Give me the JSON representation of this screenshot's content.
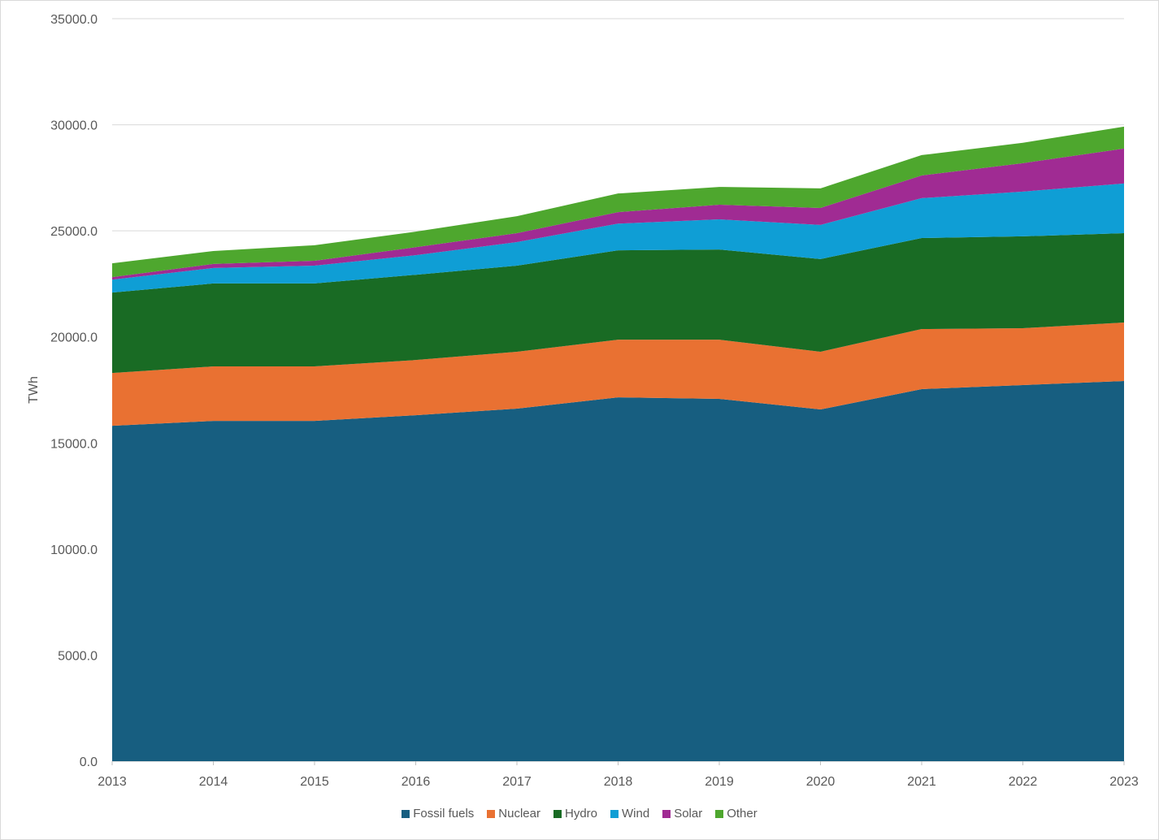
{
  "chart_data": {
    "type": "area",
    "stacked": true,
    "title": "",
    "xlabel": "",
    "ylabel": "TWh",
    "ylim": [
      0,
      35000
    ],
    "yticks": [
      "0.0",
      "5000.0",
      "10000.0",
      "15000.0",
      "20000.0",
      "25000.0",
      "30000.0",
      "35000.0"
    ],
    "grid": true,
    "legend_position": "bottom",
    "categories": [
      "2013",
      "2014",
      "2015",
      "2016",
      "2017",
      "2018",
      "2019",
      "2020",
      "2021",
      "2022",
      "2023"
    ],
    "series": [
      {
        "name": "Fossil fuels",
        "color": "#175e80",
        "values": [
          15810,
          16040,
          16040,
          16310,
          16620,
          17150,
          17080,
          16580,
          17540,
          17730,
          17920
        ]
      },
      {
        "name": "Nuclear",
        "color": "#e97132",
        "values": [
          2490,
          2570,
          2570,
          2600,
          2680,
          2720,
          2790,
          2720,
          2830,
          2680,
          2760
        ]
      },
      {
        "name": "Hydro",
        "color": "#196b24",
        "values": [
          3790,
          3910,
          3910,
          4020,
          4060,
          4210,
          4250,
          4370,
          4290,
          4330,
          4210
        ]
      },
      {
        "name": "Wind",
        "color": "#0f9ed5",
        "values": [
          610,
          730,
          840,
          920,
          1110,
          1260,
          1420,
          1610,
          1880,
          2110,
          2340
        ]
      },
      {
        "name": "Solar",
        "color": "#a02b93",
        "values": [
          120,
          190,
          230,
          380,
          420,
          540,
          690,
          800,
          1070,
          1340,
          1650
        ]
      },
      {
        "name": "Other",
        "color": "#4ea72e",
        "values": [
          650,
          610,
          730,
          730,
          800,
          880,
          840,
          920,
          960,
          960,
          1030
        ]
      }
    ]
  }
}
